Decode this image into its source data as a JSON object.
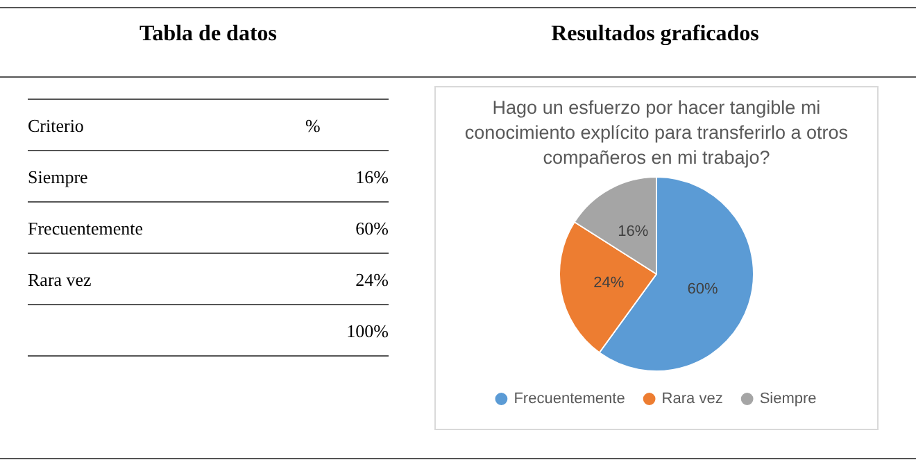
{
  "chart_data": {
    "type": "pie",
    "title": "Hago un esfuerzo por hacer tangible mi conocimiento explícito para transferirlo a otros compañeros en mi trabajo?",
    "categories": [
      "Frecuentemente",
      "Rara vez",
      "Siempre"
    ],
    "values": [
      60,
      24,
      16
    ],
    "colors": [
      "#5b9bd5",
      "#ed7d31",
      "#a5a5a5"
    ],
    "value_labels": [
      "60%",
      "24%",
      "16%"
    ],
    "legend": "bottom",
    "annotations": [
      "Tabla de datos",
      "Resultados graficados",
      "Criterio",
      "%",
      "Siempre",
      "16%",
      "Frecuentemente",
      "60%",
      "Rara vez",
      "24%",
      "100%"
    ]
  }
}
